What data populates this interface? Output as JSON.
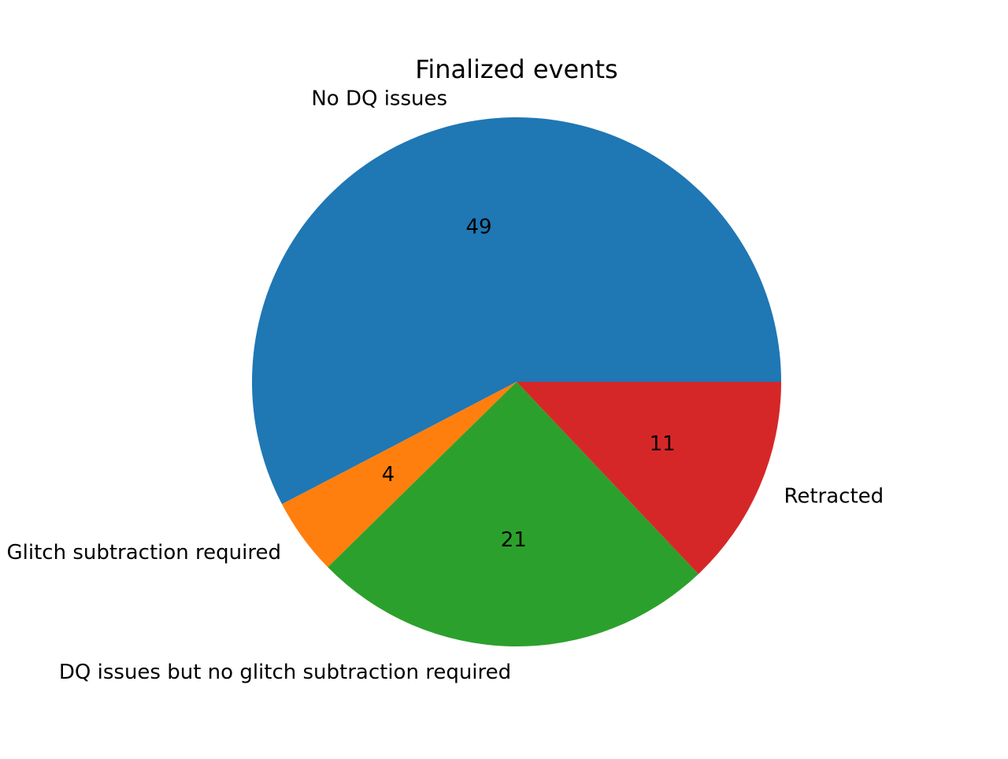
{
  "chart_data": {
    "type": "pie",
    "title": "Finalized events",
    "labels": [
      "No DQ issues",
      "Glitch subtraction required",
      "DQ issues but no glitch subtraction required",
      "Retracted"
    ],
    "values": [
      49,
      4,
      21,
      11
    ],
    "value_labels": [
      "49",
      "4",
      "21",
      "11"
    ],
    "colors": [
      "#1f77b4",
      "#ff7f0e",
      "#2ca02c",
      "#d62728"
    ],
    "start_angle_deg": 0,
    "direction": "counterclockwise",
    "legend": "none"
  }
}
